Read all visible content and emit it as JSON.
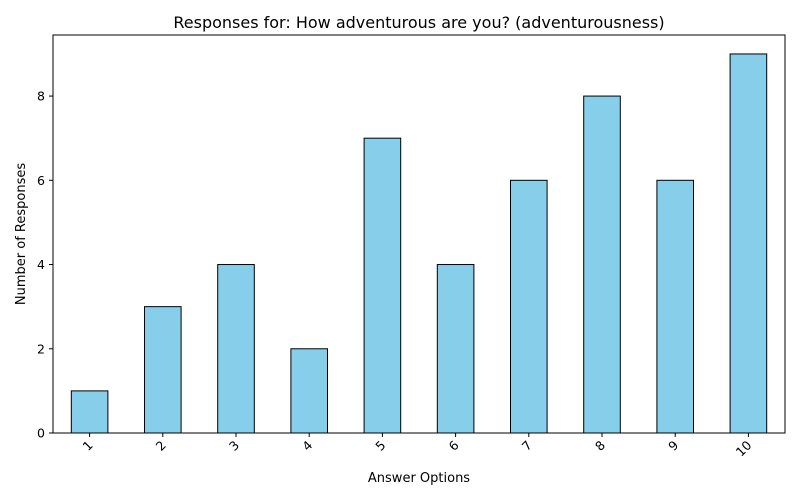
{
  "chart_data": {
    "type": "bar",
    "title": "Responses for: How adventurous are you? (adventurousness)",
    "xlabel": "Answer Options",
    "ylabel": "Number of Responses",
    "categories": [
      "1",
      "2",
      "3",
      "4",
      "5",
      "6",
      "7",
      "8",
      "9",
      "10"
    ],
    "values": [
      1,
      3,
      4,
      2,
      7,
      4,
      6,
      8,
      6,
      9
    ],
    "ylim": [
      0,
      9.45
    ],
    "yticks": [
      0,
      2,
      4,
      6,
      8
    ],
    "grid": false,
    "bar_color": "#87ceeb",
    "edge_color": "#000000",
    "x_tick_rotation_deg": 45
  }
}
